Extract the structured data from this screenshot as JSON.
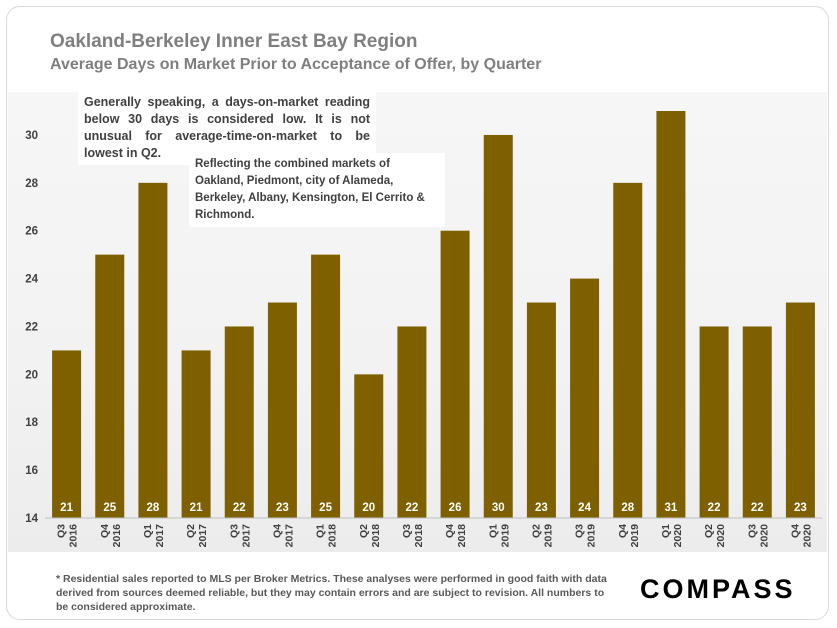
{
  "header": {
    "title": "Oakland-Berkeley Inner East Bay Region",
    "subtitle": "Average Days on Market Prior to Acceptance of Offer, by Quarter"
  },
  "annotations": {
    "note1": "Generally speaking, a days-on-market reading below 30 days is considered low. It is not unusual for average-time-on-market to be lowest in Q2.",
    "note2": "Reflecting the combined markets of Oakland, Piedmont, city of Alameda, Berkeley, Albany, Kensington, El Cerrito & Richmond."
  },
  "footer": {
    "footnote": "* Residential sales reported to MLS per Broker Metrics. These analyses were performed in good faith with data derived from sources deemed reliable, but they may contain errors and are subject to revision. All numbers to  be considered  approximate.",
    "logo": "COMPASS"
  },
  "colors": {
    "bar": "#7f6000",
    "label": "#ffffff",
    "axis_text": "#404040"
  },
  "chart_data": {
    "type": "bar",
    "title": "Oakland-Berkeley Inner East Bay Region",
    "subtitle": "Average Days on Market Prior to Acceptance of Offer, by Quarter",
    "categories": [
      [
        "Q3",
        "2016"
      ],
      [
        "Q4",
        "2016"
      ],
      [
        "Q1",
        "2017"
      ],
      [
        "Q2",
        "2017"
      ],
      [
        "Q3",
        "2017"
      ],
      [
        "Q4",
        "2017"
      ],
      [
        "Q1",
        "2018"
      ],
      [
        "Q2",
        "2018"
      ],
      [
        "Q3",
        "2018"
      ],
      [
        "Q4",
        "2018"
      ],
      [
        "Q1",
        "2019"
      ],
      [
        "Q2",
        "2019"
      ],
      [
        "Q3",
        "2019"
      ],
      [
        "Q4",
        "2019"
      ],
      [
        "Q1",
        "2020"
      ],
      [
        "Q2",
        "2020"
      ],
      [
        "Q3",
        "2020"
      ],
      [
        "Q4",
        "2020"
      ]
    ],
    "values": [
      21,
      25,
      28,
      21,
      22,
      23,
      25,
      20,
      22,
      26,
      30,
      23,
      24,
      28,
      31,
      22,
      22,
      23
    ],
    "ylim": [
      14,
      31
    ],
    "yticks": [
      14,
      16,
      18,
      20,
      22,
      24,
      26,
      28,
      30
    ],
    "grid": false,
    "data_labels": true
  }
}
